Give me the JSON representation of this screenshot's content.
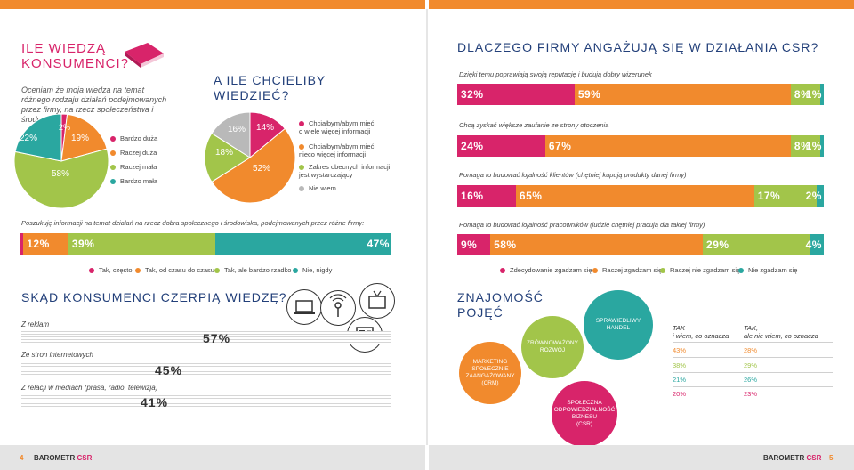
{
  "colors": {
    "pink": "#d8246a",
    "orange": "#f18a2d",
    "green": "#a2c54a",
    "teal": "#2aa7a0",
    "gray": "#b9b9b9",
    "navy": "#23407a",
    "darkpink": "#e0287a"
  },
  "left": {
    "knowledge_title": "ILE WIEDZĄ\nKONSUMENCI?",
    "knowledge_sub": "Oceniam że moja wiedza na temat różnego rodzaju działań podejmowanych przez firmy, na rzecz społeczeństwa i środowiska jest:",
    "knowledge_legend": [
      "Bardzo duża",
      "Raczej duża",
      "Raczej mała",
      "Bardzo mała"
    ],
    "want_title": "A ILE CHCIELIBY\nWIEDZIEĆ?",
    "want_legend": [
      "Chciałbym/abym mieć\no wiele więcej informacji",
      "Chciałbym/abym mieć\nnieco więcej informacji",
      "Zakres obecnych informacji\njest wystarczający",
      "Nie wiem"
    ],
    "search_caption": "Poszukuję informacji na temat działań na rzecz dobra społecznego i środowiska, podejmowanych przez różne firmy:",
    "search_legend": [
      "Tak, często",
      "Tak, od czasu do czasu",
      "Tak, ale bardzo rzadko",
      "Nie, nigdy"
    ],
    "sources_title": "SKĄD KONSUMENCI CZERPIĄ WIEDZĘ?",
    "sources": [
      {
        "label": "Z reklam",
        "value": "57%"
      },
      {
        "label": "Ze stron internetowych",
        "value": "45%"
      },
      {
        "label": "Z relacji w mediach (prasa, radio, telewizja)",
        "value": "41%"
      }
    ],
    "page_no": "4",
    "brand": "BAROMETR",
    "brand_accent": "CSR"
  },
  "right": {
    "why_title": "DLACZEGO FIRMY ANGAŻUJĄ SIĘ W DZIAŁANIA CSR?",
    "bars_caption": [
      "Dzięki temu poprawiają swoją reputację i budują dobry wizerunek",
      "Chcą zyskać większe zaufanie ze strony otoczenia",
      "Pomaga to budować lojalność klientów (chętniej kupują produkty danej firmy)",
      "Pomaga to budować lojalność pracowników (ludzie chętniej pracują dla takiej firmy)"
    ],
    "why_legend": [
      "Zdecydowanie zgadzam się",
      "Raczej zgadzam się",
      "Raczej nie zgadzam się",
      "Nie zgadzam się"
    ],
    "concepts_title": "ZNAJOMOŚĆ\nPOJĘĆ",
    "concepts": [
      "MARKETING\nSPOŁECZNIE\nZAANGAŻOWANY\n(CRM)",
      "ZRÓWNOWAŻONY\nROZWÓJ",
      "SPRAWIEDLIWY\nHANDEL",
      "SPOŁECZNA\nODPOWIEDZIALNOŚĆ\nBIZNESU\n(CSR)"
    ],
    "table_head": [
      "TAK\ni wiem, co oznacza",
      "TAK,\nale nie wiem, co oznacza"
    ],
    "table_rows": [
      [
        "43%",
        "28%"
      ],
      [
        "38%",
        "29%"
      ],
      [
        "21%",
        "26%"
      ],
      [
        "20%",
        "23%"
      ]
    ],
    "page_no": "5",
    "brand": "BAROMETR",
    "brand_accent": "CSR"
  },
  "chart_data": [
    {
      "type": "pie",
      "name": "knowledge",
      "categories": [
        "Bardzo duża",
        "Raczej duża",
        "Raczej mała",
        "Bardzo mała"
      ],
      "values": [
        2,
        19,
        58,
        22
      ]
    },
    {
      "type": "pie",
      "name": "want",
      "categories": [
        "Chciałbym/abym mieć o wiele więcej informacji",
        "Chciałbym/abym mieć nieco więcej informacji",
        "Zakres obecnych informacji jest wystarczający",
        "Nie wiem"
      ],
      "values": [
        14,
        52,
        18,
        16
      ]
    },
    {
      "type": "bar",
      "name": "search",
      "categories": [
        "Tak, często",
        "Tak, od czasu do czasu",
        "Tak, ale bardzo rzadko",
        "Nie, nigdy"
      ],
      "values": [
        1,
        12,
        39,
        47
      ]
    },
    {
      "type": "bar",
      "name": "why",
      "categories": [
        "Zdecydowanie zgadzam się",
        "Raczej zgadzam się",
        "Raczej nie zgadzam się",
        "Nie zgadzam się"
      ],
      "series": [
        {
          "values": [
            32,
            59,
            8,
            1
          ]
        },
        {
          "values": [
            24,
            67,
            8,
            1
          ]
        },
        {
          "values": [
            16,
            65,
            17,
            2
          ]
        },
        {
          "values": [
            9,
            58,
            29,
            4
          ]
        }
      ]
    },
    {
      "type": "bar",
      "name": "sources",
      "categories": [
        "Z reklam",
        "Ze stron internetowych",
        "Z relacji w mediach (prasa, radio, telewizja)"
      ],
      "values": [
        57,
        45,
        41
      ]
    }
  ]
}
